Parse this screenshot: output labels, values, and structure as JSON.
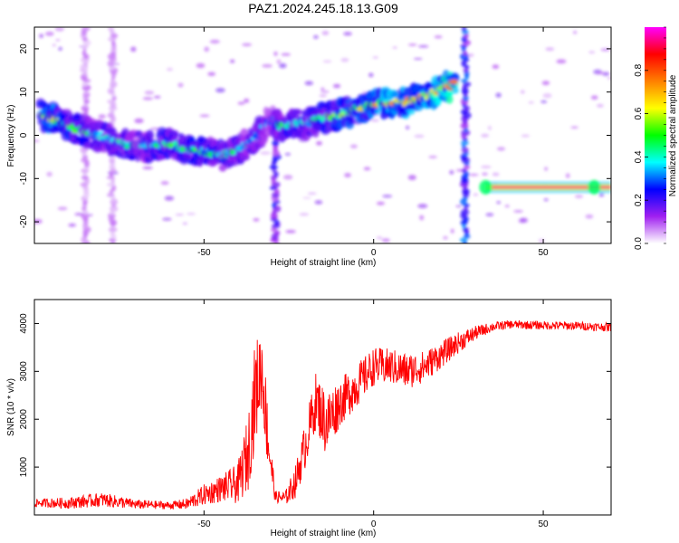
{
  "title": "PAZ1.2024.245.18.13.G09",
  "chart_data": [
    {
      "type": "heatmap",
      "xlabel": "Height of straight line (km)",
      "ylabel": "Frequency (Hz)",
      "xlim": [
        -100,
        70
      ],
      "ylim": [
        -25,
        25
      ],
      "x_ticks": [
        -50,
        0,
        50
      ],
      "y_ticks": [
        -20,
        -10,
        0,
        10,
        20
      ],
      "colorbar": {
        "label": "Normalized spectral amplitude",
        "range": [
          0,
          1
        ],
        "ticks": [
          "0.0",
          "0.2",
          "0.4",
          "0.6",
          "0.8"
        ],
        "stops": [
          "#ffffff",
          "#a020f0",
          "#0000ff",
          "#00ffff",
          "#00ff00",
          "#ffff00",
          "#ff8000",
          "#ff0000",
          "#ff00ff"
        ]
      },
      "ridge": [
        [
          -98,
          4.5,
          0.55
        ],
        [
          -95,
          4.0,
          0.6
        ],
        [
          -92,
          3.0,
          0.5
        ],
        [
          -88,
          1.5,
          0.45
        ],
        [
          -84,
          0.5,
          0.4
        ],
        [
          -80,
          -0.5,
          0.35
        ],
        [
          -76,
          -1.5,
          0.35
        ],
        [
          -72,
          -2.2,
          0.4
        ],
        [
          -68,
          -2.5,
          0.35
        ],
        [
          -64,
          -2.5,
          0.4
        ],
        [
          -60,
          -2.0,
          0.45
        ],
        [
          -56,
          -3.0,
          0.4
        ],
        [
          -52,
          -3.5,
          0.45
        ],
        [
          -48,
          -4.0,
          0.4
        ],
        [
          -44,
          -4.5,
          0.4
        ],
        [
          -40,
          -3.5,
          0.4
        ],
        [
          -36,
          -1.5,
          0.35
        ],
        [
          -33,
          1.5,
          0.3
        ],
        [
          -30,
          3.5,
          0.25
        ],
        [
          -27,
          2.0,
          0.45
        ],
        [
          -23,
          2.5,
          0.4
        ],
        [
          -19,
          3.0,
          0.35
        ],
        [
          -15,
          4.0,
          0.45
        ],
        [
          -11,
          4.5,
          0.5
        ],
        [
          -7,
          5.5,
          0.5
        ],
        [
          -3,
          6.5,
          0.55
        ],
        [
          1,
          7.2,
          0.6
        ],
        [
          5,
          7.5,
          0.65
        ],
        [
          9,
          7.5,
          0.6
        ],
        [
          13,
          8.5,
          0.6
        ],
        [
          17,
          9.5,
          0.65
        ],
        [
          21,
          11.0,
          0.7
        ],
        [
          24,
          12.0,
          0.75
        ]
      ],
      "tone": {
        "x_start": 33,
        "x_end": 70,
        "freq": -12.0,
        "amplitude": 0.95
      }
    },
    {
      "type": "line",
      "xlabel": "Height of straight line (km)",
      "ylabel": "SNR (10 * v/v)",
      "color": "#ff0000",
      "xlim": [
        -100,
        70
      ],
      "ylim": [
        0,
        4500
      ],
      "x_ticks": [
        -50,
        0,
        50
      ],
      "y_ticks": [
        1000,
        2000,
        3000,
        4000
      ],
      "x": [
        -100,
        -90,
        -80,
        -70,
        -60,
        -55,
        -50,
        -45,
        -40,
        -37,
        -35,
        -33,
        -31,
        -29,
        -26,
        -23,
        -20,
        -17,
        -14,
        -10,
        -5,
        0,
        5,
        10,
        15,
        20,
        25,
        30,
        35,
        40,
        50,
        60,
        70
      ],
      "y": [
        250,
        250,
        320,
        220,
        200,
        230,
        420,
        550,
        650,
        1300,
        2500,
        3100,
        1500,
        380,
        350,
        700,
        1500,
        2400,
        1900,
        2350,
        2700,
        3100,
        3100,
        3000,
        3100,
        3350,
        3600,
        3800,
        3930,
        3980,
        3960,
        3950,
        3920
      ],
      "spread": [
        80,
        120,
        150,
        100,
        80,
        120,
        220,
        280,
        420,
        800,
        1100,
        900,
        700,
        120,
        150,
        350,
        500,
        600,
        700,
        500,
        450,
        400,
        380,
        380,
        330,
        280,
        220,
        150,
        100,
        90,
        90,
        90,
        90
      ]
    }
  ]
}
